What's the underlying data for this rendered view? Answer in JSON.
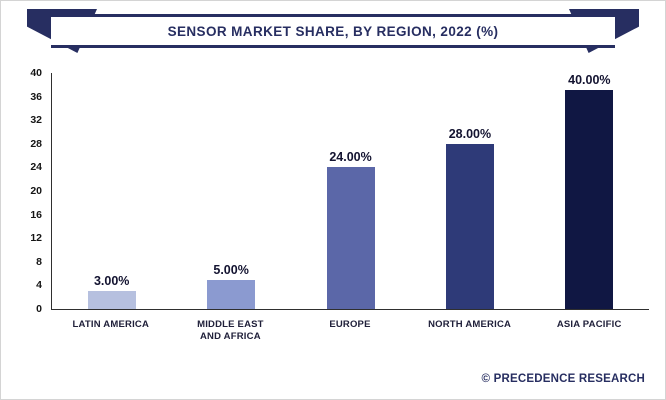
{
  "footer": {
    "credit": "© PRECEDENCE RESEARCH"
  },
  "colors": {
    "navy": "#272e61",
    "axis": "#2f2f2f"
  },
  "chart_data": {
    "type": "bar",
    "title": "SENSOR MARKET SHARE, BY REGION, 2022 (%)",
    "categories": [
      "LATIN AMERICA",
      "MIDDLE EAST\nAND AFRICA",
      "EUROPE",
      "NORTH AMERICA",
      "ASIA PACIFIC"
    ],
    "values": [
      3,
      5,
      24,
      28,
      40
    ],
    "value_labels": [
      "3.00%",
      "5.00%",
      "24.00%",
      "28.00%",
      "40.00%"
    ],
    "bar_colors": [
      "#b6c0df",
      "#8b9ad0",
      "#5b67a8",
      "#2e3a78",
      "#101743"
    ],
    "xlabel": "",
    "ylabel": "",
    "ylim": [
      0,
      40
    ],
    "yticks": [
      0,
      4,
      8,
      12,
      16,
      20,
      24,
      28,
      32,
      36,
      40
    ],
    "grid": false,
    "legend": false
  }
}
